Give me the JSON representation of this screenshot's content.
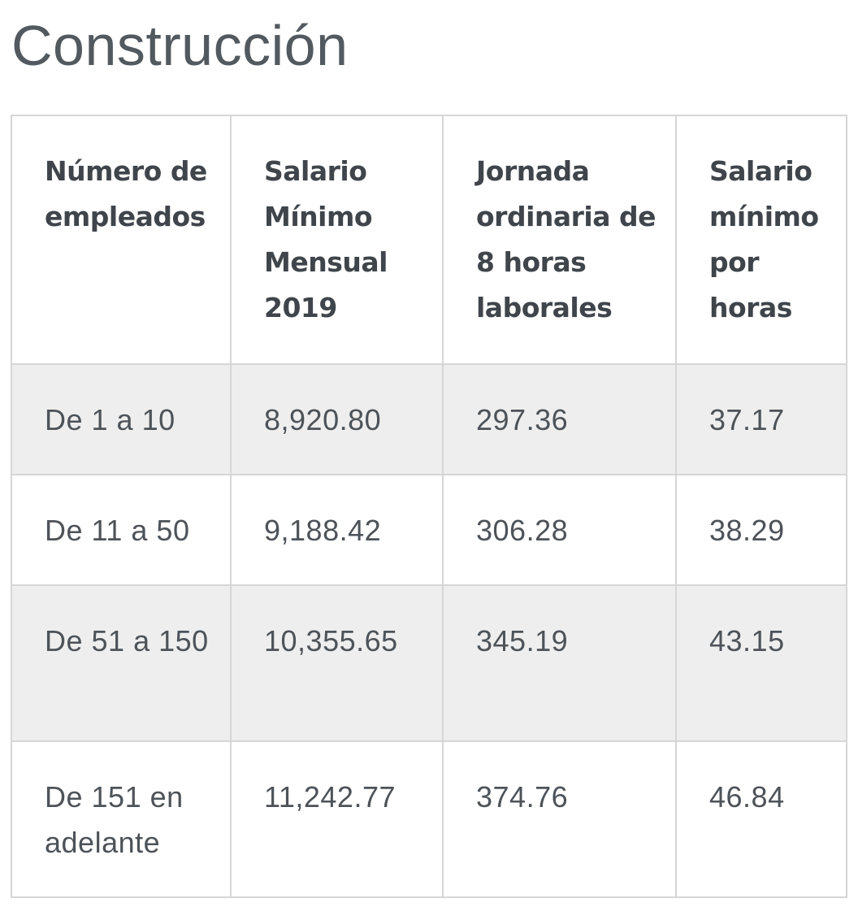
{
  "title": "Construcción",
  "table": {
    "headers": [
      "Número de empleados",
      "Salario Mínimo Mensual 2019",
      "Jornada ordinaria de 8 horas laborales",
      "Salario mínimo por horas"
    ],
    "rows": [
      [
        "De 1 a 10",
        "8,920.80",
        "297.36",
        "37.17"
      ],
      [
        "De 11 a 50",
        "9,188.42",
        "306.28",
        "38.29"
      ],
      [
        "De 51 a 150",
        "10,355.65",
        "345.19",
        "43.15"
      ],
      [
        "De 151 en adelante",
        "11,242.77",
        "374.76",
        "46.84"
      ]
    ]
  }
}
